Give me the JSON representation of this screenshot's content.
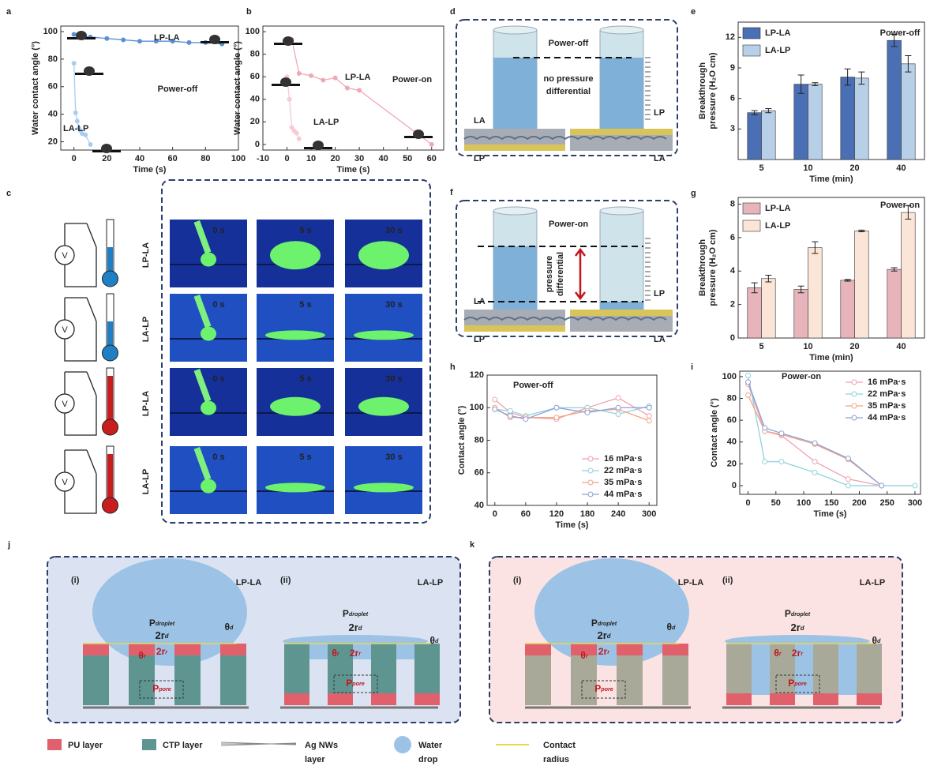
{
  "chart_data": [
    {
      "label": "a",
      "type": "line",
      "x_label": "Time (s)",
      "y_label": [
        "Water contact angle (°)"
      ],
      "markers": "filled",
      "xlim": [
        -8,
        100
      ],
      "xticks": [
        0,
        20,
        40,
        60,
        80,
        100
      ],
      "ylim": [
        14,
        104
      ],
      "yticks": [
        20,
        40,
        60,
        80,
        100
      ],
      "series": [
        {
          "name": "LP-LA",
          "color": "#5b8fd6",
          "x": [
            0,
            5,
            10,
            20,
            30,
            40,
            50,
            60,
            70,
            80,
            90
          ],
          "values": [
            98,
            97,
            96,
            95,
            94,
            93,
            93,
            93,
            92,
            92,
            91
          ]
        },
        {
          "name": "LA-LP",
          "color": "#a9cdf0",
          "x": [
            0,
            1,
            2,
            3,
            4,
            5,
            7,
            10
          ],
          "values": [
            77,
            41,
            35,
            30,
            28,
            26,
            25,
            18
          ]
        }
      ],
      "annotations": [
        "Power-off"
      ]
    },
    {
      "label": "b",
      "type": "line",
      "x_label": "Time (s)",
      "y_label": [
        "Water contact angle (°)"
      ],
      "markers": "filled",
      "xlim": [
        -10,
        65
      ],
      "xticks": [
        -10,
        0,
        10,
        20,
        30,
        40,
        50,
        60
      ],
      "ylim": [
        -5,
        105
      ],
      "yticks": [
        0,
        20,
        40,
        60,
        80,
        100
      ],
      "series": [
        {
          "name": "LP-LA",
          "color": "#f0a8b4",
          "x": [
            2,
            5,
            10,
            15,
            20,
            25,
            30,
            60
          ],
          "values": [
            93,
            63,
            61,
            57,
            59,
            50,
            48,
            0
          ]
        },
        {
          "name": "LA-LP",
          "color": "#f6cbd2",
          "x": [
            0,
            1,
            2,
            3,
            4,
            5
          ],
          "values": [
            60,
            40,
            15,
            12,
            10,
            5
          ]
        }
      ],
      "annotations": [
        "Power-on"
      ]
    },
    {
      "label": "e",
      "type": "bar",
      "x_label": "Time (min)",
      "y_label": [
        "Breakthrough",
        "pressure (H₂O cm)"
      ],
      "legend": "upper left",
      "categories": [
        "5",
        "10",
        "20",
        "40"
      ],
      "ylim": [
        0,
        13.5
      ],
      "yticks": [
        3,
        6,
        9,
        12
      ],
      "series": [
        {
          "name": "LP-LA",
          "color": "#4a6fb5",
          "values": [
            4.6,
            7.4,
            8.1,
            11.7
          ],
          "errors": [
            0.2,
            0.9,
            0.8,
            0.6
          ]
        },
        {
          "name": "LA-LP",
          "color": "#b8cfe8",
          "values": [
            4.8,
            7.4,
            8.0,
            9.4
          ],
          "errors": [
            0.2,
            0.15,
            0.6,
            0.8
          ]
        }
      ],
      "annotations": [
        "Power-off"
      ]
    },
    {
      "label": "g",
      "type": "bar",
      "x_label": "Time (min)",
      "y_label": [
        "Breakthrough",
        "pressure (H₂O cm)"
      ],
      "legend": "upper left",
      "categories": [
        "5",
        "10",
        "20",
        "40"
      ],
      "ylim": [
        0,
        8.4
      ],
      "yticks": [
        0,
        2,
        4,
        6,
        8
      ],
      "series": [
        {
          "name": "LP-LA",
          "color": "#e8b4bc",
          "values": [
            3.0,
            2.9,
            3.45,
            4.1
          ],
          "errors": [
            0.3,
            0.2,
            0.05,
            0.1
          ]
        },
        {
          "name": "LA-LP",
          "color": "#fbe5d6",
          "values": [
            3.55,
            5.4,
            6.4,
            7.5
          ],
          "errors": [
            0.2,
            0.35,
            0.05,
            0.4
          ]
        }
      ],
      "annotations": [
        "Power-on"
      ]
    },
    {
      "label": "h",
      "type": "line",
      "x_label": "Time (s)",
      "y_label": [
        "Contact angle (°)"
      ],
      "markers": "open",
      "legend": "lower right",
      "x": [
        0,
        30,
        60,
        120,
        180,
        240,
        300
      ],
      "xlim": [
        -15,
        315
      ],
      "xticks": [
        0,
        60,
        120,
        180,
        240,
        300
      ],
      "ylim": [
        40,
        120
      ],
      "yticks": [
        40,
        60,
        80,
        100,
        120
      ],
      "series": [
        {
          "name": "16 mPa·s",
          "color": "#f0a0b0",
          "values": [
            105,
            97,
            94,
            93,
            100,
            106,
            95
          ]
        },
        {
          "name": "22 mPa·s",
          "color": "#8fd3dc",
          "values": [
            99,
            98,
            95,
            100,
            100,
            96,
            101
          ]
        },
        {
          "name": "35 mPa·s",
          "color": "#f4a582",
          "values": [
            100,
            94,
            94,
            94,
            98,
            99,
            92
          ]
        },
        {
          "name": "44 mPa·s",
          "color": "#8aa0d8",
          "values": [
            99,
            95,
            93,
            100,
            97,
            100,
            100
          ]
        }
      ],
      "annotations": [
        "Power-off"
      ]
    },
    {
      "label": "i",
      "type": "line",
      "x_label": "Time (s)",
      "y_label": [
        "Contact angle (°)"
      ],
      "markers": "open",
      "legend": "upper right",
      "xlim": [
        -15,
        310
      ],
      "xticks": [
        0,
        50,
        100,
        150,
        200,
        250,
        300
      ],
      "ylim": [
        -8,
        105
      ],
      "yticks": [
        0,
        20,
        40,
        60,
        80,
        100
      ],
      "series": [
        {
          "name": "16 mPa·s",
          "color": "#f0a0b0",
          "x": [
            0,
            30,
            60,
            120,
            180,
            240
          ],
          "values": [
            93,
            50,
            46,
            22,
            6,
            0
          ]
        },
        {
          "name": "22 mPa·s",
          "color": "#8fd3dc",
          "x": [
            0,
            30,
            60,
            120,
            180,
            300
          ],
          "values": [
            101,
            22,
            22,
            12,
            0,
            0
          ]
        },
        {
          "name": "35 mPa·s",
          "color": "#f4a582",
          "x": [
            0,
            30,
            60,
            120,
            180,
            240
          ],
          "values": [
            83,
            50,
            47,
            38,
            24,
            0
          ]
        },
        {
          "name": "44 mPa·s",
          "color": "#8aa0d8",
          "x": [
            0,
            30,
            60,
            120,
            180,
            240
          ],
          "values": [
            95,
            53,
            48,
            39,
            25,
            0
          ]
        }
      ],
      "annotations": [
        "Power-on"
      ]
    }
  ],
  "panel_c": {
    "label": "c",
    "voltmeter": "V",
    "rows": [
      {
        "label": "LP-LA",
        "times": [
          "0 s",
          "5 s",
          "30 s"
        ]
      },
      {
        "label": "LA-LP",
        "times": [
          "0 s",
          "5 s",
          "30 s"
        ]
      },
      {
        "label": "LP-LA",
        "times": [
          "0 s",
          "5 s",
          "30 s"
        ]
      },
      {
        "label": "LA-LP",
        "times": [
          "0 s",
          "5 s",
          "30 s"
        ]
      }
    ]
  },
  "panel_d": {
    "label": "d",
    "title": "Power-off",
    "note": [
      "no pressure",
      "differential"
    ],
    "left_top": "LA",
    "left_bottom": "LP",
    "right_top": "LP",
    "right_bottom": "LA"
  },
  "panel_f": {
    "label": "f",
    "title": "Power-on",
    "note": [
      "pressure",
      "differential"
    ],
    "left_top": "LA",
    "left_bottom": "LP",
    "right_top": "LP",
    "right_bottom": "LA"
  },
  "panel_j": {
    "label": "j",
    "parts": [
      {
        "tag": "(i)",
        "title": "LP-LA"
      },
      {
        "tag": "(ii)",
        "title": "LA-LP"
      }
    ]
  },
  "panel_k": {
    "label": "k",
    "parts": [
      {
        "tag": "(i)",
        "title": "LP-LA"
      },
      {
        "tag": "(ii)",
        "title": "LA-LP"
      }
    ]
  },
  "symbols": {
    "pressure": "P",
    "droplet": "droplet",
    "pore": "pore",
    "diameter": "2r",
    "angle": "θ",
    "drop_index": "d",
    "pore_index": "r"
  },
  "legend": [
    [
      "PU layer"
    ],
    [
      "CTP layer"
    ],
    [
      "Ag NWs",
      "layer"
    ],
    [
      "Water",
      "drop"
    ],
    [
      "Contact",
      "radius"
    ]
  ]
}
